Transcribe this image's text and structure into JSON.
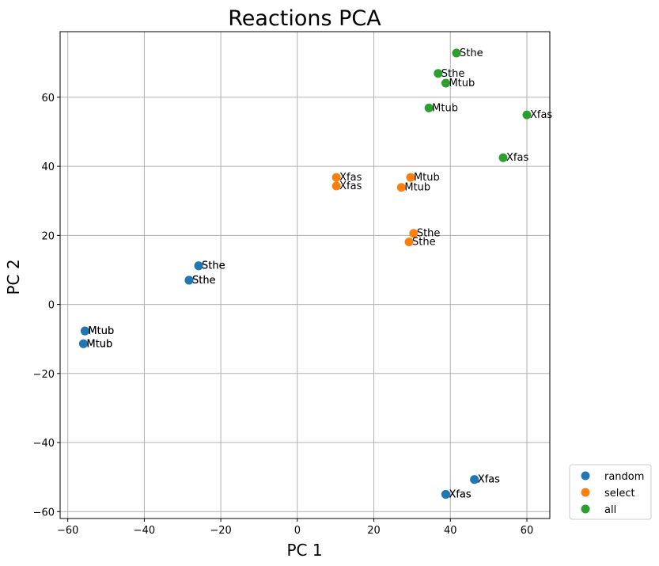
{
  "chart_data": {
    "type": "scatter",
    "title": "Reactions PCA",
    "xlabel": "PC 1",
    "ylabel": "PC 2",
    "xlim": [
      -62,
      66
    ],
    "ylim": [
      -62,
      79
    ],
    "xticks": [
      -60,
      -40,
      -20,
      0,
      20,
      40,
      60
    ],
    "yticks": [
      -60,
      -40,
      -20,
      0,
      20,
      40,
      60
    ],
    "grid": true,
    "legend_position": "outside-bottom-right",
    "series": [
      {
        "name": "random",
        "color": "#1f77b4",
        "points": [
          {
            "x": -25.8,
            "y": 11.2,
            "label": "Sthe"
          },
          {
            "x": -25.8,
            "y": 11.2,
            "label": "Sthe"
          },
          {
            "x": -28.3,
            "y": 7.0,
            "label": "Sthe"
          },
          {
            "x": -28.3,
            "y": 7.0,
            "label": "Sthe"
          },
          {
            "x": -55.5,
            "y": -7.7,
            "label": "Mtub"
          },
          {
            "x": -55.5,
            "y": -7.7,
            "label": "Mtub"
          },
          {
            "x": -55.9,
            "y": -11.4,
            "label": "Mtub"
          },
          {
            "x": -55.9,
            "y": -11.4,
            "label": "Mtub"
          },
          {
            "x": 46.3,
            "y": -50.7,
            "label": "Xfas"
          },
          {
            "x": 46.3,
            "y": -50.7,
            "label": "Xfas"
          },
          {
            "x": 38.8,
            "y": -55.0,
            "label": "Xfas"
          },
          {
            "x": 38.8,
            "y": -55.0,
            "label": "Xfas"
          }
        ]
      },
      {
        "name": "select",
        "color": "#ff7f0e",
        "points": [
          {
            "x": 10.2,
            "y": 36.8,
            "label": "Xfas"
          },
          {
            "x": 10.2,
            "y": 34.3,
            "label": "Xfas"
          },
          {
            "x": 29.6,
            "y": 36.8,
            "label": "Mtub"
          },
          {
            "x": 27.2,
            "y": 33.9,
            "label": "Mtub"
          },
          {
            "x": 30.4,
            "y": 20.6,
            "label": "Sthe"
          },
          {
            "x": 29.2,
            "y": 18.1,
            "label": "Sthe"
          }
        ]
      },
      {
        "name": "all",
        "color": "#2ca02c",
        "points": [
          {
            "x": 41.6,
            "y": 72.8,
            "label": "Sthe"
          },
          {
            "x": 36.8,
            "y": 66.9,
            "label": "Sthe"
          },
          {
            "x": 38.8,
            "y": 64.1,
            "label": "Mtub"
          },
          {
            "x": 34.4,
            "y": 56.9,
            "label": "Mtub"
          },
          {
            "x": 60.0,
            "y": 54.9,
            "label": "Xfas"
          },
          {
            "x": 53.8,
            "y": 42.5,
            "label": "Xfas"
          }
        ]
      }
    ]
  }
}
